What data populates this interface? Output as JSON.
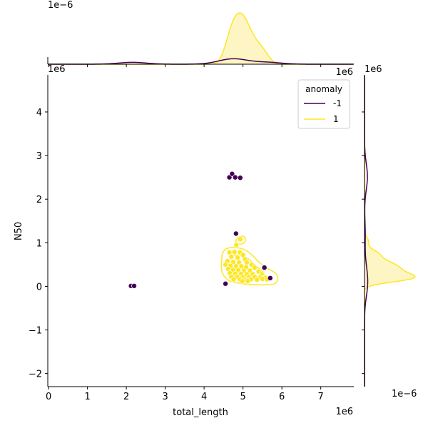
{
  "chart_data": {
    "type": "scatter",
    "xlabel": "total_length",
    "ylabel": "N50",
    "x_offset_label": "1e6",
    "y_offset_label": "1e6",
    "xlim": [
      -0.02,
      7.85
    ],
    "ylim": [
      -2.3,
      4.85
    ],
    "x_ticks": [
      "0",
      "1",
      "2",
      "3",
      "4",
      "5",
      "6",
      "7"
    ],
    "y_ticks": [
      "−2",
      "−1",
      "0",
      "1",
      "2",
      "3",
      "4"
    ],
    "top_marginal_offset_label": "1e−6",
    "right_marginal_offset_label": "1e−6",
    "legend": {
      "title": "anomaly",
      "placement": "upper right",
      "entries": [
        "-1",
        "1"
      ]
    },
    "colors": {
      "anomaly": "#440154",
      "normal": "#fde725",
      "fill": "#fdf5c3"
    },
    "series": [
      {
        "name": "-1",
        "points": [
          [
            4.65,
            2.5
          ],
          [
            4.72,
            2.58
          ],
          [
            4.8,
            2.5
          ],
          [
            4.93,
            2.49
          ],
          [
            4.82,
            1.21
          ],
          [
            5.55,
            0.43
          ],
          [
            4.55,
            0.06
          ],
          [
            5.7,
            0.19
          ],
          [
            2.12,
            0.01
          ],
          [
            2.2,
            0.01
          ]
        ]
      },
      {
        "name": "1",
        "points": [
          [
            4.93,
            1.08
          ],
          [
            4.83,
            0.95
          ],
          [
            4.65,
            0.78
          ],
          [
            4.78,
            0.79
          ],
          [
            4.92,
            0.78
          ],
          [
            5.0,
            0.72
          ],
          [
            4.7,
            0.68
          ],
          [
            4.86,
            0.66
          ],
          [
            5.05,
            0.62
          ],
          [
            4.6,
            0.58
          ],
          [
            4.75,
            0.56
          ],
          [
            4.9,
            0.55
          ],
          [
            5.1,
            0.55
          ],
          [
            5.22,
            0.5
          ],
          [
            4.55,
            0.5
          ],
          [
            4.68,
            0.47
          ],
          [
            4.82,
            0.46
          ],
          [
            4.96,
            0.46
          ],
          [
            5.08,
            0.44
          ],
          [
            5.3,
            0.43
          ],
          [
            4.62,
            0.4
          ],
          [
            4.75,
            0.38
          ],
          [
            4.88,
            0.37
          ],
          [
            5.02,
            0.36
          ],
          [
            5.18,
            0.36
          ],
          [
            5.4,
            0.34
          ],
          [
            4.66,
            0.3
          ],
          [
            4.8,
            0.29
          ],
          [
            4.95,
            0.29
          ],
          [
            5.1,
            0.28
          ],
          [
            5.25,
            0.28
          ],
          [
            5.48,
            0.28
          ],
          [
            4.7,
            0.22
          ],
          [
            4.85,
            0.22
          ],
          [
            5.0,
            0.21
          ],
          [
            5.15,
            0.21
          ],
          [
            5.3,
            0.22
          ],
          [
            5.45,
            0.21
          ],
          [
            5.58,
            0.2
          ],
          [
            4.76,
            0.16
          ],
          [
            4.92,
            0.16
          ],
          [
            5.06,
            0.15
          ],
          [
            5.2,
            0.16
          ],
          [
            5.36,
            0.15
          ],
          [
            5.5,
            0.17
          ],
          [
            5.62,
            0.16
          ],
          [
            4.98,
            0.12
          ],
          [
            5.12,
            0.12
          ]
        ]
      }
    ]
  }
}
